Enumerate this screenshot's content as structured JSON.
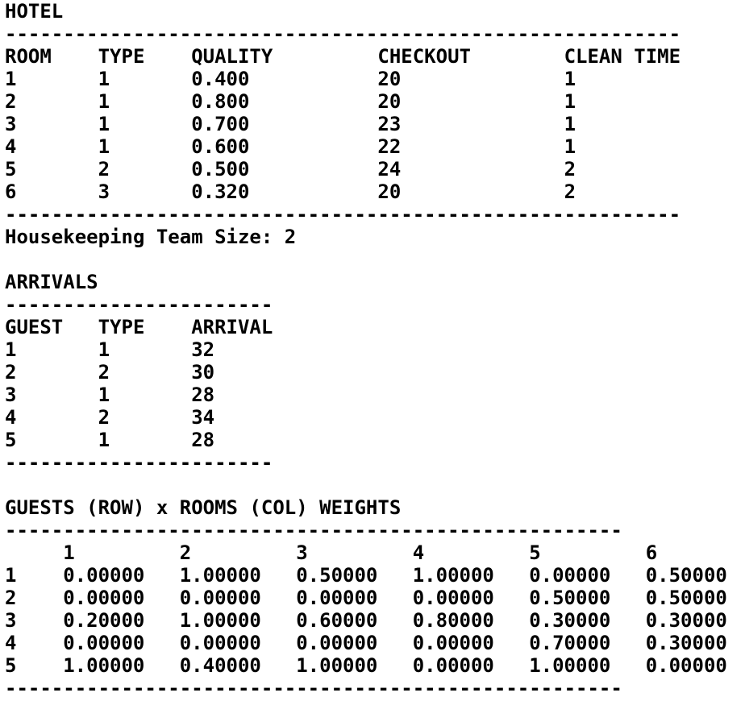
{
  "hotel": {
    "title": "HOTEL",
    "separator": "----------------------------------------------------------",
    "headers": [
      "ROOM",
      "TYPE",
      "QUALITY",
      "CHECKOUT",
      "CLEAN TIME"
    ],
    "rows": [
      [
        "1",
        "1",
        "0.400",
        "20",
        "1"
      ],
      [
        "2",
        "1",
        "0.800",
        "20",
        "1"
      ],
      [
        "3",
        "1",
        "0.700",
        "23",
        "1"
      ],
      [
        "4",
        "1",
        "0.600",
        "22",
        "1"
      ],
      [
        "5",
        "2",
        "0.500",
        "24",
        "2"
      ],
      [
        "6",
        "3",
        "0.320",
        "20",
        "2"
      ]
    ],
    "team_size": "Housekeeping Team Size: 2"
  },
  "arrivals": {
    "title": "ARRIVALS",
    "separator": "-----------------------",
    "headers": [
      "GUEST",
      "TYPE",
      "ARRIVAL"
    ],
    "rows": [
      [
        "1",
        "1",
        "32"
      ],
      [
        "2",
        "2",
        "30"
      ],
      [
        "3",
        "1",
        "28"
      ],
      [
        "4",
        "2",
        "34"
      ],
      [
        "5",
        "1",
        "28"
      ]
    ]
  },
  "weights": {
    "title": "GUESTS (ROW) x ROOMS (COL) WEIGHTS",
    "separator": "-----------------------------------------------------",
    "headers": [
      "1",
      "2",
      "3",
      "4",
      "5",
      "6"
    ],
    "rows": [
      [
        "1",
        "0.00000",
        "1.00000",
        "0.50000",
        "1.00000",
        "0.00000",
        "0.50000"
      ],
      [
        "2",
        "0.00000",
        "0.00000",
        "0.00000",
        "0.00000",
        "0.50000",
        "0.50000"
      ],
      [
        "3",
        "0.20000",
        "1.00000",
        "0.60000",
        "0.80000",
        "0.30000",
        "0.30000"
      ],
      [
        "4",
        "0.00000",
        "0.00000",
        "0.00000",
        "0.00000",
        "0.70000",
        "0.30000"
      ],
      [
        "5",
        "1.00000",
        "0.40000",
        "1.00000",
        "0.00000",
        "1.00000",
        "0.00000"
      ]
    ]
  }
}
